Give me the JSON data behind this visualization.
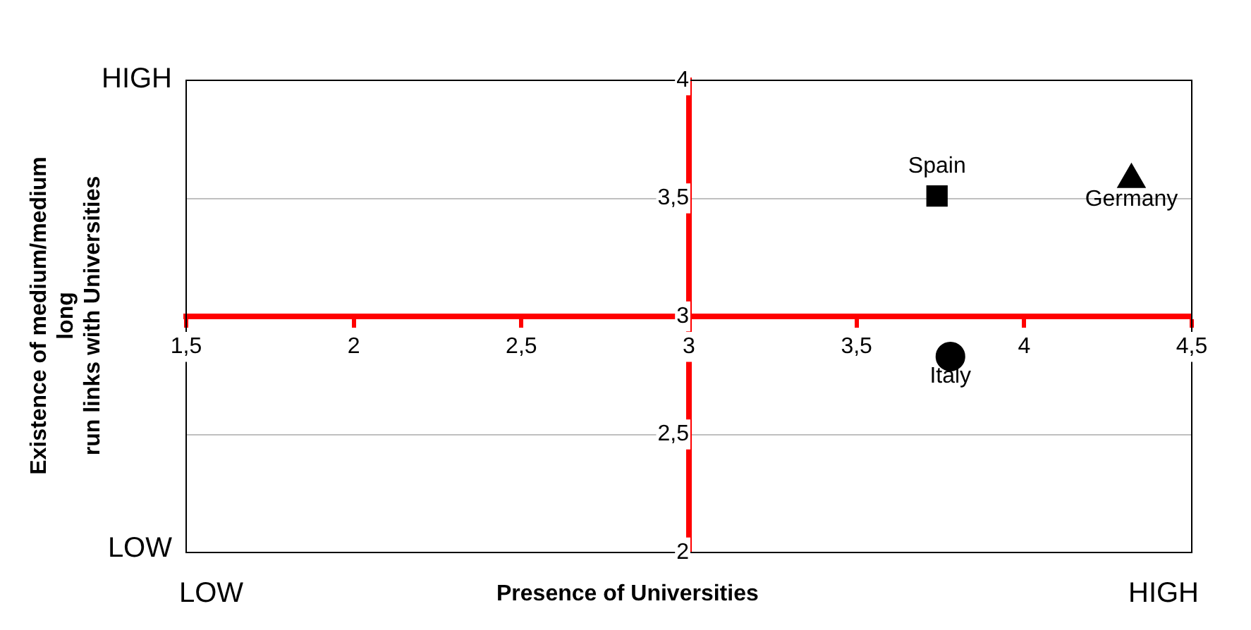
{
  "chart_data": {
    "type": "scatter",
    "xlabel": "Presence of Universities",
    "ylabel": "Existence of medium/medium\nlong\nrun links with Universities",
    "xlim": [
      1.5,
      4.5
    ],
    "xticks": [
      {
        "value": 1.5,
        "label": "1,5"
      },
      2,
      {
        "value": 2.5,
        "label": "2,5"
      },
      3,
      {
        "value": 3.5,
        "label": "3,5"
      },
      4,
      {
        "value": 4.5,
        "label": "4,5"
      }
    ],
    "ylim": [
      2,
      4
    ],
    "yticks": [
      2,
      {
        "value": 2.5,
        "label": "2,5"
      },
      3,
      {
        "value": 3.5,
        "label": "3,5"
      },
      4
    ],
    "grid": "y",
    "legend": false,
    "annotations": [
      "HIGH",
      "LOW",
      "LOW",
      "HIGH"
    ],
    "series": [
      {
        "name": "Spain",
        "color": "#000000",
        "marker": "square",
        "x": [
          3.74
        ],
        "values": [
          3.51
        ]
      },
      {
        "name": "Germany",
        "color": "#000000",
        "marker": "triangle",
        "x": [
          4.32
        ],
        "values": [
          3.58
        ]
      },
      {
        "name": "Italy",
        "color": "#000000",
        "marker": "circle",
        "x": [
          3.78
        ],
        "values": [
          2.83
        ]
      }
    ]
  }
}
